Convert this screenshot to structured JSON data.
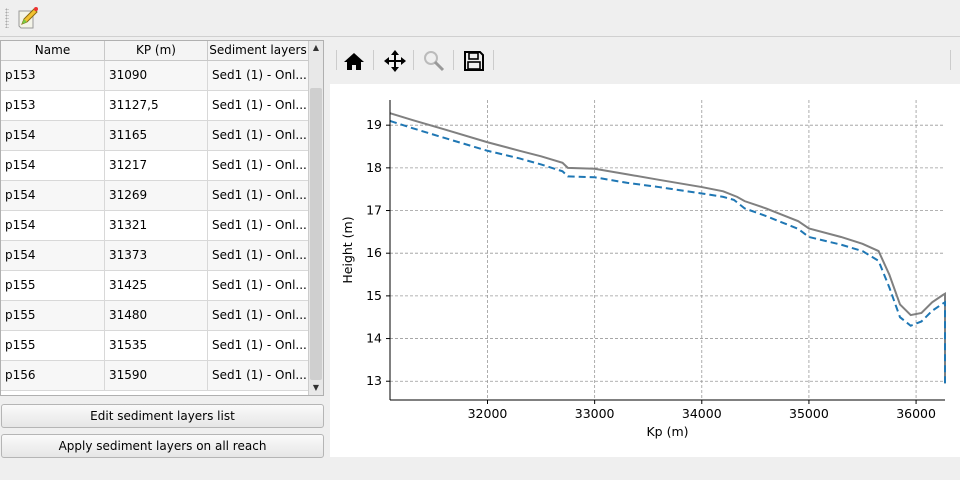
{
  "toolbar": {
    "edit_icon": "edit-pencil-icon"
  },
  "table": {
    "columns": [
      "Name",
      "KP (m)",
      "Sediment layers"
    ],
    "rows": [
      [
        "p153",
        "31090",
        "Sed1 (1) - Onl..."
      ],
      [
        "p153",
        "31127,5",
        "Sed1 (1) - Onl..."
      ],
      [
        "p154",
        "31165",
        "Sed1 (1) - Onl..."
      ],
      [
        "p154",
        "31217",
        "Sed1 (1) - Onl..."
      ],
      [
        "p154",
        "31269",
        "Sed1 (1) - Onl..."
      ],
      [
        "p154",
        "31321",
        "Sed1 (1) - Onl..."
      ],
      [
        "p154",
        "31373",
        "Sed1 (1) - Onl..."
      ],
      [
        "p155",
        "31425",
        "Sed1 (1) - Onl..."
      ],
      [
        "p155",
        "31480",
        "Sed1 (1) - Onl..."
      ],
      [
        "p155",
        "31535",
        "Sed1 (1) - Onl..."
      ],
      [
        "p156",
        "31590",
        "Sed1 (1) - Onl..."
      ]
    ]
  },
  "buttons": {
    "edit": "Edit sediment layers list",
    "apply": "Apply sediment layers on all reach"
  },
  "plot_toolbar": [
    "home-icon",
    "pan-icon",
    "zoom-icon",
    "save-icon"
  ],
  "chart_data": {
    "type": "line",
    "xlabel": "Kp (m)",
    "ylabel": "Height (m)",
    "xlim": [
      31090,
      36270
    ],
    "ylim": [
      12.56,
      19.59
    ],
    "xticks": [
      32000,
      33000,
      34000,
      35000,
      36000
    ],
    "yticks": [
      13,
      14,
      15,
      16,
      17,
      18,
      19
    ],
    "grid": true,
    "series": [
      {
        "color": "#808080",
        "style": "solid",
        "x": [
          31090,
          31300,
          31600,
          32000,
          32300,
          32500,
          32700,
          32750,
          33000,
          33300,
          33600,
          34000,
          34200,
          34330,
          34400,
          34600,
          34900,
          35000,
          35300,
          35500,
          35650,
          35750,
          35850,
          35950,
          36050,
          36150,
          36250,
          36270,
          36270
        ],
        "y": [
          19.28,
          19.12,
          18.9,
          18.6,
          18.4,
          18.27,
          18.12,
          18.0,
          17.98,
          17.85,
          17.72,
          17.55,
          17.45,
          17.32,
          17.22,
          17.05,
          16.75,
          16.58,
          16.38,
          16.22,
          16.05,
          15.5,
          14.8,
          14.55,
          14.6,
          14.85,
          15.02,
          15.05,
          12.95
        ]
      },
      {
        "color": "#1f77b4",
        "style": "dashed",
        "x": [
          31090,
          31300,
          31600,
          32000,
          32300,
          32500,
          32700,
          32750,
          33000,
          33300,
          33600,
          34000,
          34200,
          34300,
          34400,
          34600,
          34900,
          35000,
          35300,
          35500,
          35650,
          35750,
          35850,
          35950,
          36050,
          36150,
          36250,
          36270,
          36270
        ],
        "y": [
          19.1,
          18.93,
          18.7,
          18.4,
          18.22,
          18.08,
          17.92,
          17.8,
          17.78,
          17.65,
          17.55,
          17.4,
          17.32,
          17.25,
          17.05,
          16.87,
          16.57,
          16.38,
          16.2,
          16.05,
          15.82,
          15.2,
          14.5,
          14.3,
          14.4,
          14.65,
          14.82,
          14.85,
          12.95
        ]
      }
    ]
  }
}
